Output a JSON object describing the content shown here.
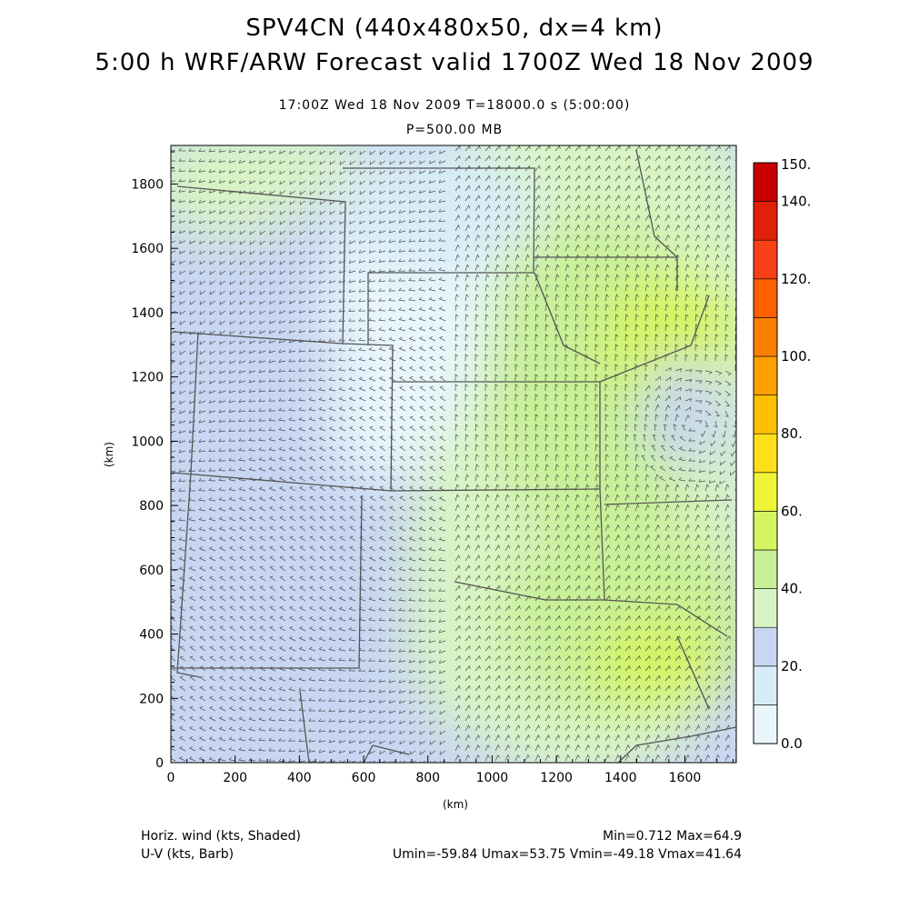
{
  "header": {
    "title": "SPV4CN (440x480x50, dx=4 km)",
    "subtitle": "5:00 h WRF/ARW Forecast valid 1700Z Wed 18 Nov 2009",
    "time_line": "17:00Z Wed 18 Nov 2009     T=18000.0 s (5:00:00)",
    "level_line": "P=500.00 MB"
  },
  "footer": {
    "left1": "Horiz. wind (kts, Shaded)",
    "left2": "U-V (kts, Barb)",
    "right1": "Min=0.712 Max=64.9",
    "right2": "Umin=-59.84 Umax=53.75 Vmin=-49.18 Vmax=41.64"
  },
  "chart_data": {
    "type": "heatmap",
    "title": "SPV4CN (440x480x50, dx=4 km)",
    "subtitle": "5:00 h WRF/ARW Forecast valid 1700Z Wed 18 Nov 2009",
    "xlabel": "(km)",
    "ylabel": "(km)",
    "xlim": [
      0,
      1760
    ],
    "ylim": [
      0,
      1920
    ],
    "x_ticks": [
      0,
      200,
      400,
      600,
      800,
      1000,
      1200,
      1400,
      1600
    ],
    "x_tick_labels": [
      "0",
      "200",
      "400",
      "600",
      "800",
      "1000",
      "1200",
      "1400",
      "1600"
    ],
    "y_ticks": [
      0,
      200,
      400,
      600,
      800,
      1000,
      1200,
      1400,
      1600,
      1800
    ],
    "y_tick_labels": [
      "0",
      "200",
      "400",
      "600",
      "800",
      "1000",
      "1200",
      "1400",
      "1600",
      "1800"
    ],
    "colorbar": {
      "levels": [
        0,
        10,
        20,
        30,
        40,
        50,
        60,
        70,
        80,
        90,
        100,
        110,
        120,
        130,
        140,
        150
      ],
      "colors": [
        "#e8f6fc",
        "#d8ecf8",
        "#c8d6f2",
        "#d8f4c4",
        "#c8f098",
        "#d4f460",
        "#eef438",
        "#fce018",
        "#fcc000",
        "#fca000",
        "#fc8000",
        "#fc6000",
        "#f84018",
        "#e02008",
        "#c80000"
      ],
      "labels": [
        {
          "value": 0,
          "text": "0.0"
        },
        {
          "value": 20,
          "text": "20."
        },
        {
          "value": 40,
          "text": "40."
        },
        {
          "value": 60,
          "text": "60."
        },
        {
          "value": 80,
          "text": "80."
        },
        {
          "value": 100,
          "text": "100."
        },
        {
          "value": 120,
          "text": "120."
        },
        {
          "value": 140,
          "text": "140."
        },
        {
          "value": 150,
          "text": "150."
        }
      ]
    },
    "field_summary": {
      "min": 0.712,
      "max": 64.9,
      "umin": -59.84,
      "umax": 53.75,
      "vmin": -49.18,
      "vmax": 41.64
    }
  }
}
